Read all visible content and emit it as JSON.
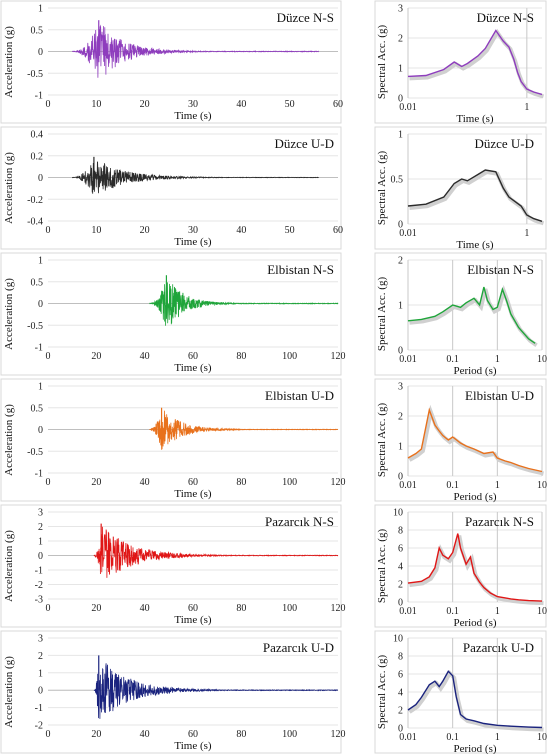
{
  "chart_data": [
    {
      "type": "line",
      "title": "Düzce N-S",
      "xlabel": "Time (s)",
      "ylabel": "Acceleration (g)",
      "xlim": [
        0,
        60
      ],
      "ylim": [
        -1,
        1
      ],
      "xticks": [
        "0",
        "10",
        "20",
        "30",
        "40",
        "50",
        "60"
      ],
      "yticks": [
        "1",
        "0.5",
        "0",
        "-0.5",
        "-1"
      ],
      "color": "#8e3dbd",
      "record": {
        "start": 5,
        "end": 56,
        "peak_time": 10.5,
        "peak": 0.72,
        "duration_decay": 5.0
      }
    },
    {
      "type": "line",
      "title": "Düzce N-S",
      "xlabel": "Time (s)",
      "ylabel": "Spectral Acc. (g)",
      "x_scale": "log",
      "xlim": [
        0.01,
        1.8
      ],
      "ylim": [
        0,
        3
      ],
      "xticks": [
        "0.01",
        "1"
      ],
      "yticks": [
        "3",
        "2",
        "1",
        "0"
      ],
      "color": "#8e3dbd",
      "x": [
        0.01,
        0.02,
        0.04,
        0.06,
        0.08,
        0.1,
        0.15,
        0.2,
        0.3,
        0.4,
        0.5,
        0.6,
        0.7,
        0.8,
        1.0,
        1.3,
        1.8
      ],
      "y": [
        0.72,
        0.75,
        0.95,
        1.2,
        1.05,
        1.15,
        1.4,
        1.65,
        2.25,
        1.9,
        1.7,
        1.3,
        0.85,
        0.55,
        0.3,
        0.2,
        0.12
      ]
    },
    {
      "type": "line",
      "title": "Düzce U-D",
      "xlabel": "Time (s)",
      "ylabel": "Acceleration (g)",
      "xlim": [
        0,
        60
      ],
      "ylim": [
        -0.4,
        0.4
      ],
      "xticks": [
        "0",
        "10",
        "20",
        "30",
        "40",
        "50",
        "60"
      ],
      "yticks": [
        "0.4",
        "0.2",
        "0",
        "-0.2",
        "-0.4"
      ],
      "color": "#2b2b2b",
      "record": {
        "start": 5,
        "end": 56,
        "peak_time": 9.5,
        "peak": 0.19,
        "duration_decay": 6.0
      }
    },
    {
      "type": "line",
      "title": "Düzce U-D",
      "xlabel": "Time (s)",
      "ylabel": "Spectral Acc. (g)",
      "x_scale": "log",
      "xlim": [
        0.01,
        1.8
      ],
      "ylim": [
        0,
        1
      ],
      "xticks": [
        "0.01",
        "1"
      ],
      "yticks": [
        "1",
        "0.5",
        "0"
      ],
      "color": "#2b2b2b",
      "x": [
        0.01,
        0.02,
        0.04,
        0.06,
        0.08,
        0.1,
        0.15,
        0.2,
        0.3,
        0.4,
        0.5,
        0.6,
        0.8,
        1.0,
        1.3,
        1.8
      ],
      "y": [
        0.2,
        0.22,
        0.3,
        0.45,
        0.5,
        0.48,
        0.55,
        0.6,
        0.58,
        0.4,
        0.3,
        0.26,
        0.2,
        0.1,
        0.06,
        0.03
      ]
    },
    {
      "type": "line",
      "title": "Elbistan N-S",
      "xlabel": "Time (s)",
      "ylabel": "Acceleration (g)",
      "xlim": [
        0,
        120
      ],
      "ylim": [
        -1,
        1
      ],
      "xticks": [
        "0",
        "20",
        "40",
        "60",
        "80",
        "100",
        "120"
      ],
      "yticks": [
        "1",
        "0.5",
        "0",
        "-0.5",
        "-1"
      ],
      "color": "#1fa53a",
      "record": {
        "start": 42,
        "end": 120,
        "peak_time": 49,
        "peak": 0.65,
        "duration_decay": 7.0
      }
    },
    {
      "type": "line",
      "title": "Elbistan N-S",
      "xlabel": "Period (s)",
      "ylabel": "Spectral Acc. (g)",
      "x_scale": "log",
      "xlim": [
        0.01,
        10
      ],
      "ylim": [
        0,
        2
      ],
      "xticks": [
        "0.01",
        "0.1",
        "1",
        "10"
      ],
      "yticks": [
        "2",
        "1",
        "0"
      ],
      "color": "#1fa53a",
      "x": [
        0.01,
        0.02,
        0.04,
        0.06,
        0.1,
        0.15,
        0.2,
        0.3,
        0.4,
        0.5,
        0.6,
        0.8,
        1.0,
        1.3,
        1.6,
        2.0,
        3.0,
        5.0,
        7.0
      ],
      "y": [
        0.65,
        0.68,
        0.75,
        0.85,
        1.0,
        0.95,
        1.05,
        1.15,
        1.0,
        1.4,
        1.1,
        0.9,
        0.95,
        1.35,
        1.1,
        0.8,
        0.5,
        0.25,
        0.15
      ]
    },
    {
      "type": "line",
      "title": "Elbistan U-D",
      "xlabel": "Time (s)",
      "ylabel": "Acceleration (g)",
      "xlim": [
        0,
        120
      ],
      "ylim": [
        -1,
        1
      ],
      "xticks": [
        "0",
        "20",
        "40",
        "60",
        "80",
        "100",
        "120"
      ],
      "yticks": [
        "1",
        "0.5",
        "0",
        "-0.5",
        "-1"
      ],
      "color": "#e8711c",
      "record": {
        "start": 42,
        "end": 120,
        "peak_time": 47,
        "peak": 0.5,
        "duration_decay": 8.0
      }
    },
    {
      "type": "line",
      "title": "Elbistan U-D",
      "xlabel": "Period (s)",
      "ylabel": "Spectral Acc. (g)",
      "x_scale": "log",
      "xlim": [
        0.01,
        10
      ],
      "ylim": [
        0,
        3
      ],
      "xticks": [
        "0.01",
        "0.1",
        "1",
        "10"
      ],
      "yticks": [
        "3",
        "2",
        "1",
        "0"
      ],
      "color": "#e8711c",
      "x": [
        0.01,
        0.015,
        0.02,
        0.03,
        0.04,
        0.05,
        0.06,
        0.08,
        0.1,
        0.15,
        0.2,
        0.3,
        0.5,
        0.8,
        1.0,
        1.5,
        2.0,
        3.0,
        5.0,
        10.0
      ],
      "y": [
        0.6,
        0.75,
        0.9,
        2.2,
        1.7,
        1.5,
        1.35,
        1.2,
        1.3,
        1.1,
        1.0,
        0.9,
        0.75,
        0.8,
        0.6,
        0.5,
        0.45,
        0.35,
        0.25,
        0.15
      ]
    },
    {
      "type": "line",
      "title": "Pazarcık N-S",
      "xlabel": "Time (s)",
      "ylabel": "Acceleration (g)",
      "xlim": [
        0,
        120
      ],
      "ylim": [
        -3,
        3
      ],
      "xticks": [
        "0",
        "20",
        "40",
        "60",
        "80",
        "100",
        "120"
      ],
      "yticks": [
        "3",
        "2",
        "1",
        "0",
        "-1",
        "-2",
        "-3"
      ],
      "color": "#e01616",
      "record": {
        "start": 19,
        "end": 120,
        "peak_time": 22,
        "peak": 2.2,
        "duration_decay": 12.0
      }
    },
    {
      "type": "line",
      "title": "Pazarcık N-S",
      "xlabel": "Period (s)",
      "ylabel": "Spectral Acc. (g)",
      "x_scale": "log",
      "xlim": [
        0.01,
        10
      ],
      "ylim": [
        0,
        10
      ],
      "xticks": [
        "0.01",
        "0.1",
        "1",
        "10"
      ],
      "yticks": [
        "10",
        "8",
        "6",
        "4",
        "2",
        "0"
      ],
      "color": "#e01616",
      "x": [
        0.01,
        0.02,
        0.03,
        0.04,
        0.05,
        0.06,
        0.08,
        0.1,
        0.13,
        0.15,
        0.2,
        0.25,
        0.3,
        0.4,
        0.5,
        0.7,
        1.0,
        2.0,
        3.0,
        5.0,
        10.0
      ],
      "y": [
        2.1,
        2.3,
        2.8,
        3.8,
        6.0,
        5.2,
        4.8,
        5.5,
        7.6,
        6.0,
        4.2,
        5.0,
        3.2,
        2.2,
        1.6,
        1.0,
        0.6,
        0.35,
        0.25,
        0.15,
        0.1
      ]
    },
    {
      "type": "line",
      "title": "Pazarcık U-D",
      "xlabel": "Time (s)",
      "ylabel": "Acceleration (g)",
      "xlim": [
        0,
        120
      ],
      "ylim": [
        -2,
        3
      ],
      "xticks": [
        "0",
        "20",
        "40",
        "60",
        "80",
        "100",
        "120"
      ],
      "yticks": [
        "3",
        "2",
        "1",
        "0",
        "-1",
        "-2"
      ],
      "color": "#1a237e",
      "record": {
        "start": 19,
        "end": 120,
        "peak_time": 21,
        "peak": 2.0,
        "duration_decay": 12.0
      }
    },
    {
      "type": "line",
      "title": "Pazarcık U-D",
      "xlabel": "Period (s)",
      "ylabel": "Spectral Acc. (g)",
      "x_scale": "log",
      "xlim": [
        0.01,
        10
      ],
      "ylim": [
        0,
        10
      ],
      "xticks": [
        "0.01",
        "0.1",
        "1",
        "10"
      ],
      "yticks": [
        "10",
        "8",
        "6",
        "4",
        "2",
        "0"
      ],
      "color": "#1a237e",
      "x": [
        0.01,
        0.015,
        0.02,
        0.03,
        0.04,
        0.05,
        0.06,
        0.08,
        0.1,
        0.12,
        0.15,
        0.2,
        0.3,
        0.5,
        1.0,
        2.0,
        5.0,
        10.0
      ],
      "y": [
        2.0,
        2.6,
        3.4,
        4.8,
        5.2,
        4.6,
        5.2,
        6.3,
        5.8,
        3.5,
        1.5,
        1.0,
        0.8,
        0.5,
        0.3,
        0.2,
        0.1,
        0.05
      ]
    }
  ]
}
